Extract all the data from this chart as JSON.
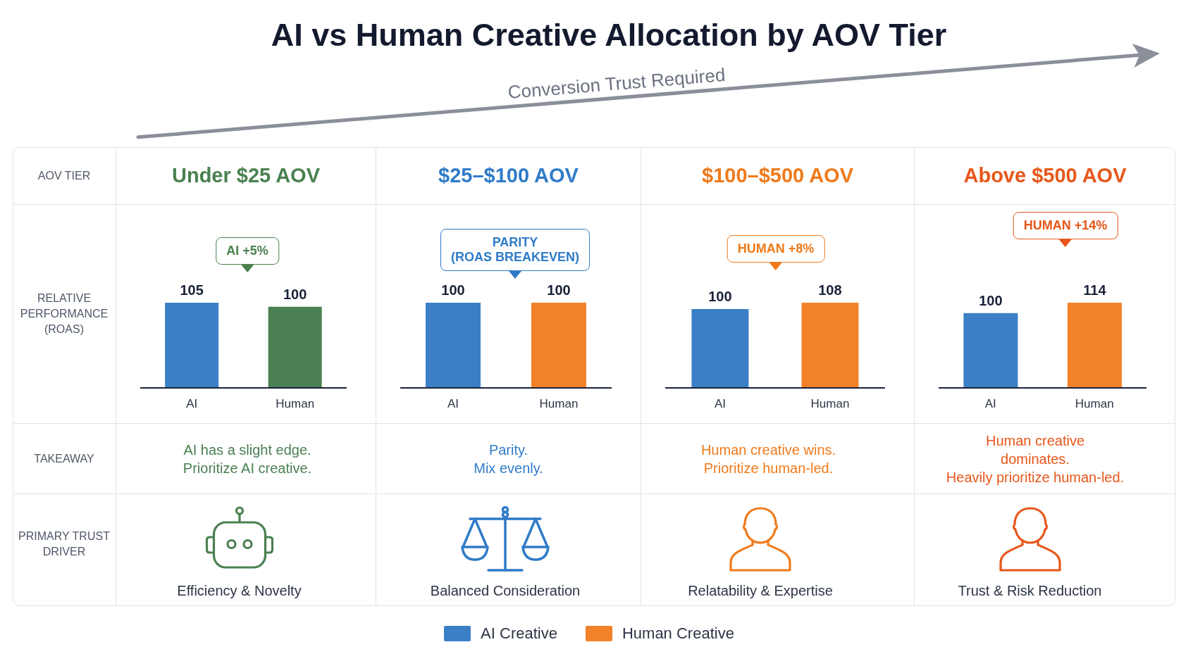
{
  "chart_data": [
    {
      "type": "other",
      "title": "AI vs Human Creative Allocation by AOV Tier",
      "annotations": [
        "Conversion Trust Required"
      ]
    },
    {
      "type": "other",
      "annotations": [
        "AOV TIER",
        "RELATIVE\nPERFORMANCE\n(ROAS)",
        "TAKEAWAY",
        "PRIMARY TRUST\nDRIVER"
      ]
    },
    {
      "type": "bar",
      "title": "Under $25 AOV",
      "categories": [
        "AI",
        "Human"
      ],
      "values": [
        105,
        100
      ],
      "colors": [
        "#3b80c6",
        "#4a7f52"
      ],
      "data_labels": true,
      "annotations": [
        "AI +5%",
        "AI has a slight edge.\nPrioritize AI creative.",
        "Efficiency & Novelty"
      ]
    },
    {
      "type": "bar",
      "title": "$25–$100 AOV",
      "categories": [
        "AI",
        "Human"
      ],
      "values": [
        100,
        100
      ],
      "colors": [
        "#3b80c6",
        "#f28229"
      ],
      "data_labels": true,
      "annotations": [
        "PARITY\n(ROAS BREAKEVEN)",
        "Parity.\nMix evenly.",
        "Balanced Consideration"
      ]
    },
    {
      "type": "bar",
      "title": "$100–$500 AOV",
      "categories": [
        "AI",
        "Human"
      ],
      "values": [
        100,
        108
      ],
      "colors": [
        "#3b80c6",
        "#f28229"
      ],
      "data_labels": true,
      "annotations": [
        "HUMAN +8%",
        "Human creative wins.\nPrioritize human-led.",
        "Relatability & Expertise"
      ]
    },
    {
      "type": "bar",
      "title": "Above $500 AOV",
      "categories": [
        "AI",
        "Human"
      ],
      "values": [
        100,
        114
      ],
      "colors": [
        "#3b80c6",
        "#f28229"
      ],
      "data_labels": true,
      "annotations": [
        "HUMAN +14%",
        "Human creative\ndominates.\nHeavily prioritize human-led.",
        "Trust & Risk Reduction"
      ]
    },
    {
      "type": "other",
      "series": [
        {
          "name": "AI Creative",
          "color": "#3b80c6"
        },
        {
          "name": "Human Creative",
          "color": "#f28229"
        }
      ],
      "legend": "bottom"
    }
  ]
}
